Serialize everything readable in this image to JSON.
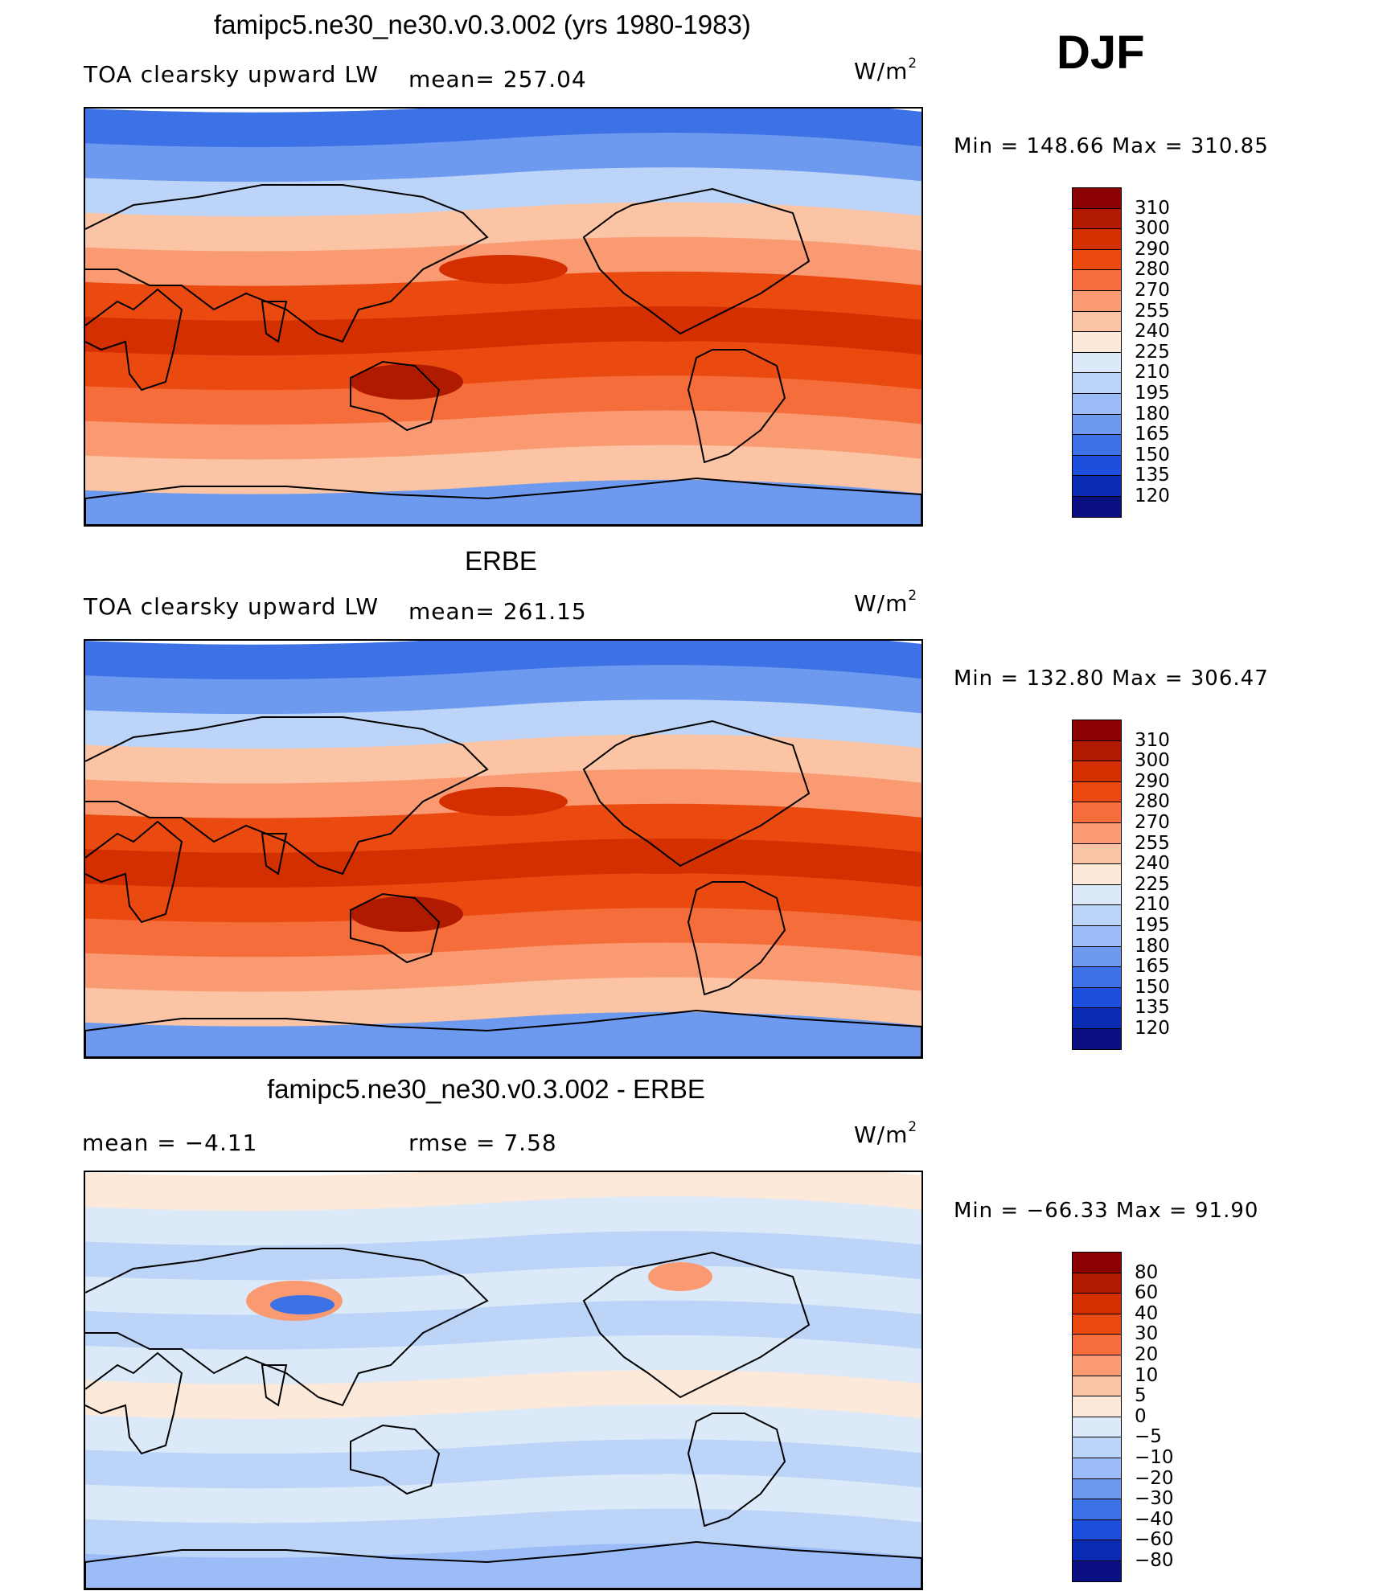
{
  "figure": {
    "season": "DJF",
    "units_label": "W/m",
    "units_exp": "2"
  },
  "panels": [
    {
      "title": "famipc5.ne30_ne30.v0.3.002 (yrs 1980-1983)",
      "left_label": "TOA clearsky upward LW",
      "mean_label": "mean= 257.04",
      "minmax": "Min  =  148.66  Max  =  310.85",
      "colorbar": {
        "levels": [
          "310",
          "300",
          "290",
          "280",
          "270",
          "255",
          "240",
          "225",
          "210",
          "195",
          "180",
          "165",
          "150",
          "135",
          "120"
        ],
        "colors": [
          "#8b0000",
          "#b01a00",
          "#d32f00",
          "#ea4a10",
          "#f56d3a",
          "#f99a72",
          "#fbc5a5",
          "#fde9da",
          "#dce9f8",
          "#bcd4f8",
          "#9bbcf6",
          "#6d99ee",
          "#3d72e6",
          "#1c4fdb",
          "#0a2bb2",
          "#0a0f82"
        ]
      },
      "map_style": "model"
    },
    {
      "title": "ERBE",
      "left_label": "TOA clearsky upward LW",
      "mean_label": "mean= 261.15",
      "minmax": "Min  =  132.80  Max  =  306.47",
      "colorbar": {
        "levels": [
          "310",
          "300",
          "290",
          "280",
          "270",
          "255",
          "240",
          "225",
          "210",
          "195",
          "180",
          "165",
          "150",
          "135",
          "120"
        ],
        "colors": [
          "#8b0000",
          "#b01a00",
          "#d32f00",
          "#ea4a10",
          "#f56d3a",
          "#f99a72",
          "#fbc5a5",
          "#fde9da",
          "#dce9f8",
          "#bcd4f8",
          "#9bbcf6",
          "#6d99ee",
          "#3d72e6",
          "#1c4fdb",
          "#0a2bb2",
          "#0a0f82"
        ]
      },
      "map_style": "obs"
    },
    {
      "title": "famipc5.ne30_ne30.v0.3.002 - ERBE",
      "left_label": "mean =    −4.11",
      "mean_label": "rmse =     7.58",
      "minmax": "Min  =  −66.33  Max  =   91.90",
      "colorbar": {
        "levels": [
          "80",
          "60",
          "40",
          "30",
          "20",
          "10",
          "5",
          "0",
          "−5",
          "−10",
          "−20",
          "−30",
          "−40",
          "−60",
          "−80"
        ],
        "colors": [
          "#8b0000",
          "#b01a00",
          "#d32f00",
          "#ea4a10",
          "#f56d3a",
          "#f99a72",
          "#fbc5a5",
          "#fde9da",
          "#dce9f8",
          "#bcd4f8",
          "#9bbcf6",
          "#6d99ee",
          "#3d72e6",
          "#1c4fdb",
          "#0a2bb2",
          "#0a0f82"
        ]
      },
      "map_style": "diff"
    }
  ]
}
